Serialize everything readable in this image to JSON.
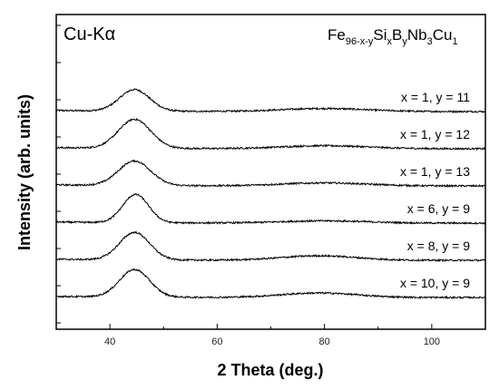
{
  "chart_data": {
    "type": "line",
    "xlabel": "2 Theta (deg.)",
    "ylabel": "Intensity (arb. units)",
    "xlim": [
      30,
      110
    ],
    "xticks": [
      40,
      60,
      80,
      100
    ],
    "y_ticks_labeled": false,
    "annotations": {
      "radiation": "Cu-Kα",
      "formula": {
        "base": "Fe",
        "sub1": "96-x-y",
        "el2": "Si",
        "sub2": "x",
        "el3": "B",
        "sub3": "y",
        "el4": "Nb",
        "sub4": "3",
        "el5": "Cu",
        "sub5": "1"
      }
    },
    "grid": false,
    "legend": "none",
    "line_color": "#000000",
    "series": [
      {
        "label": "x = 1, y = 11",
        "offset": 5,
        "peak1_center": 44.6,
        "peak1_height": 0.58,
        "peak1_width": 2.8,
        "peak2_center": 80,
        "peak2_height": 0.08,
        "peak2_width": 8
      },
      {
        "label": "x = 1, y = 12",
        "offset": 4,
        "peak1_center": 44.6,
        "peak1_height": 0.78,
        "peak1_width": 3.0,
        "peak2_center": 80,
        "peak2_height": 0.08,
        "peak2_width": 8
      },
      {
        "label": "x = 1, y = 13",
        "offset": 3,
        "peak1_center": 44.6,
        "peak1_height": 0.66,
        "peak1_width": 3.0,
        "peak2_center": 80,
        "peak2_height": 0.08,
        "peak2_width": 8
      },
      {
        "label": "x = 6, y = 9",
        "offset": 2,
        "peak1_center": 44.8,
        "peak1_height": 0.76,
        "peak1_width": 2.4,
        "peak2_center": 80,
        "peak2_height": 0.06,
        "peak2_width": 8
      },
      {
        "label": "x = 8, y = 9",
        "offset": 1,
        "peak1_center": 44.6,
        "peak1_height": 0.74,
        "peak1_width": 2.8,
        "peak2_center": 79,
        "peak2_height": 0.12,
        "peak2_width": 7
      },
      {
        "label": "x = 10, y = 9",
        "offset": 0,
        "peak1_center": 44.6,
        "peak1_height": 0.74,
        "peak1_width": 2.8,
        "peak2_center": 79,
        "peak2_height": 0.12,
        "peak2_width": 7
      }
    ]
  }
}
